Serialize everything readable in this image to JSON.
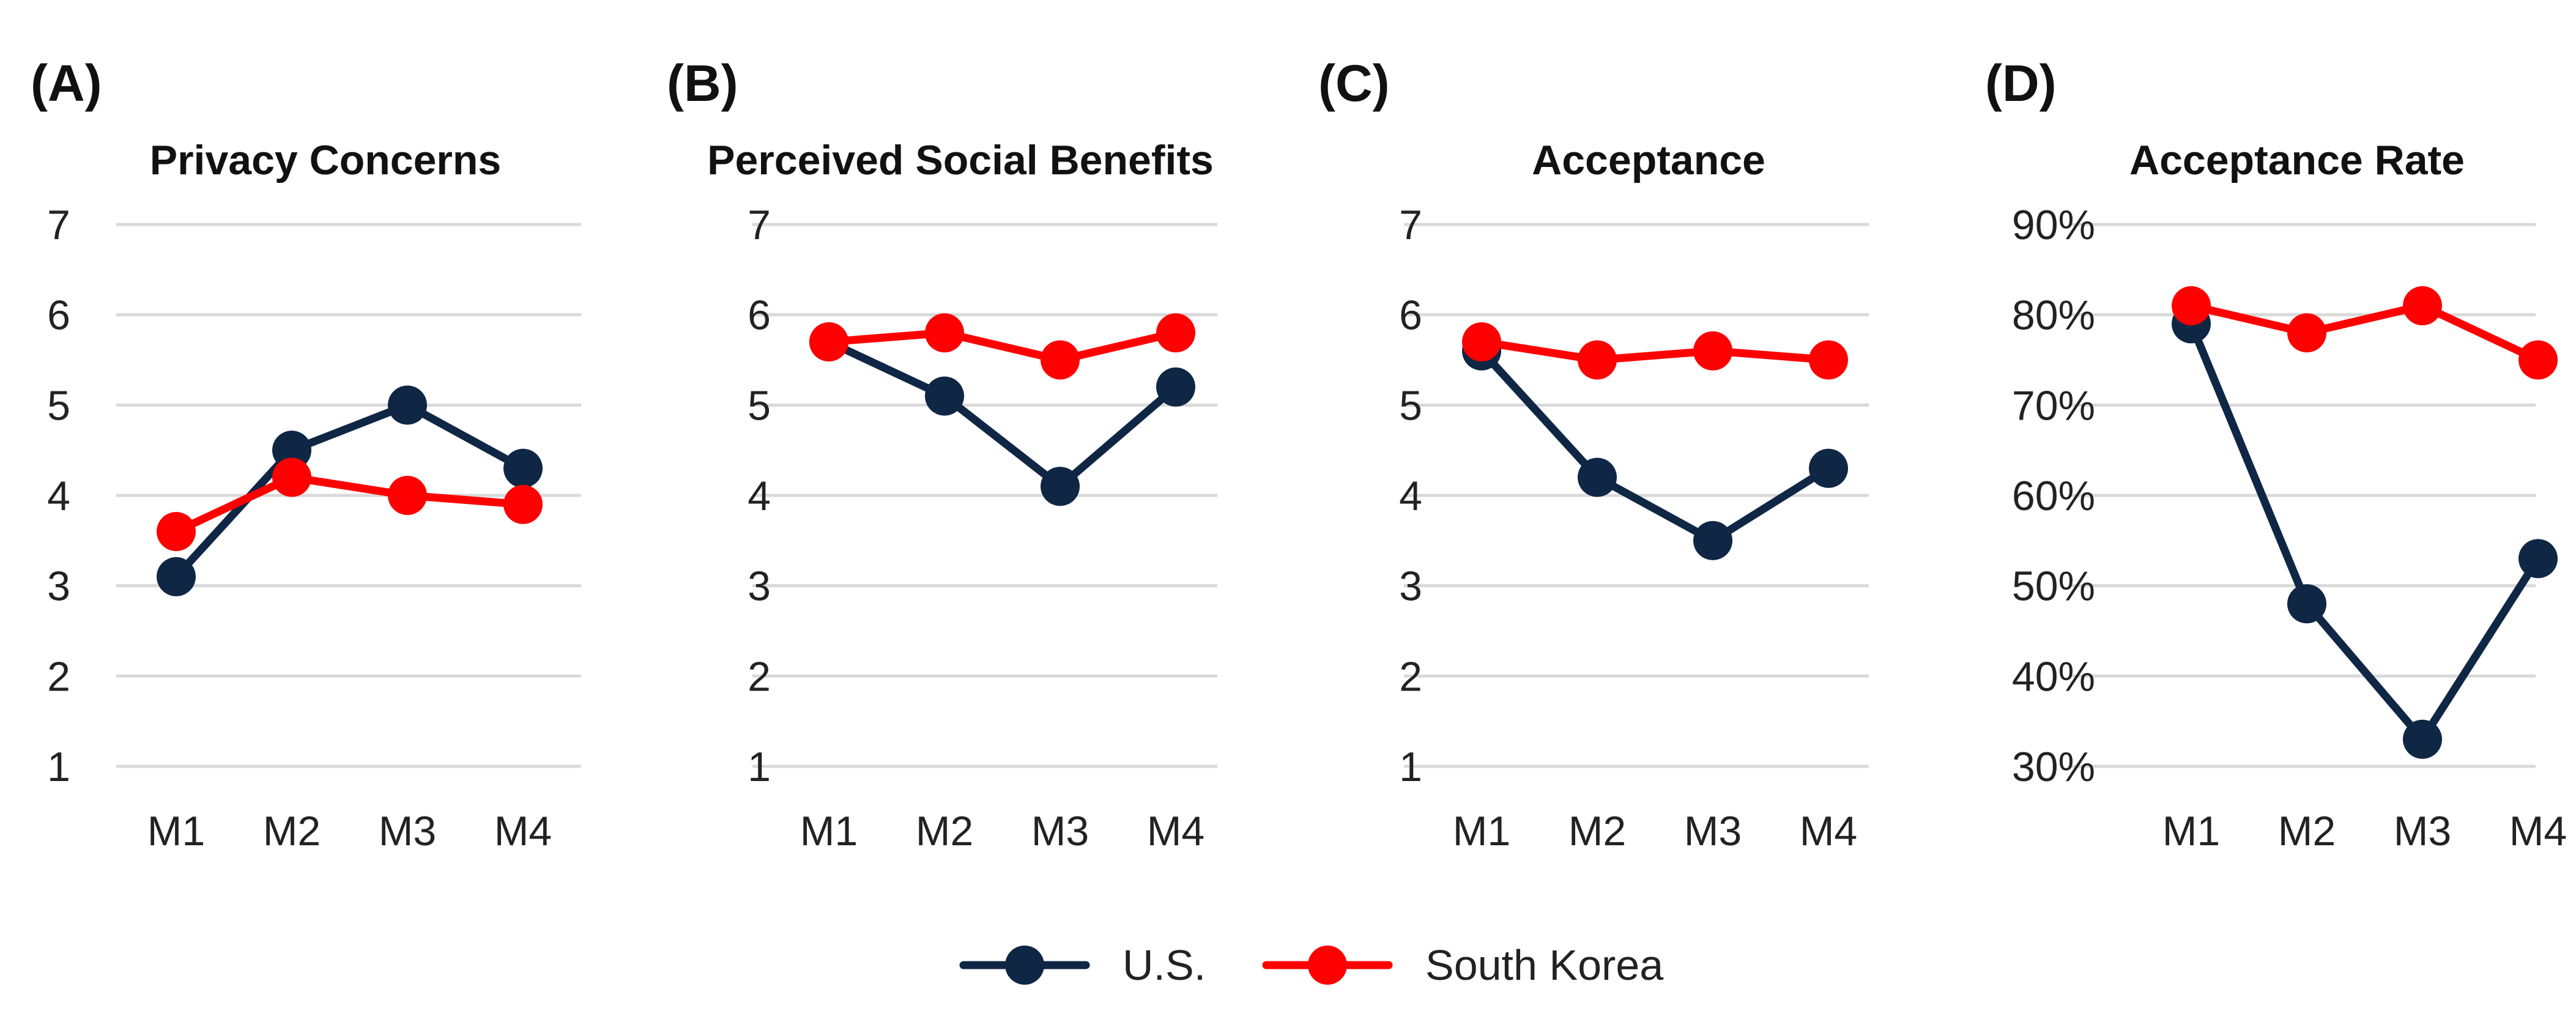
{
  "colors": {
    "us": "#0f2645",
    "korea": "#ff0000"
  },
  "legend": {
    "us_label": "U.S.",
    "korea_label": "South Korea"
  },
  "chart_data": [
    {
      "type": "line",
      "panel": "(A)",
      "title": "Privacy Concerns",
      "categories": [
        "M1",
        "M2",
        "M3",
        "M4"
      ],
      "y_ticks": [
        "1",
        "2",
        "3",
        "4",
        "5",
        "6",
        "7"
      ],
      "ylim": [
        1,
        7
      ],
      "series": [
        {
          "name": "U.S.",
          "color_key": "us",
          "values": [
            3.1,
            4.5,
            5.0,
            4.3
          ]
        },
        {
          "name": "South Korea",
          "color_key": "korea",
          "values": [
            3.6,
            4.2,
            4.0,
            3.9
          ]
        }
      ]
    },
    {
      "type": "line",
      "panel": "(B)",
      "title": "Perceived Social Benefits",
      "categories": [
        "M1",
        "M2",
        "M3",
        "M4"
      ],
      "y_ticks": [
        "1",
        "2",
        "3",
        "4",
        "5",
        "6",
        "7"
      ],
      "ylim": [
        1,
        7
      ],
      "series": [
        {
          "name": "U.S.",
          "color_key": "us",
          "values": [
            5.7,
            5.1,
            4.1,
            5.2
          ]
        },
        {
          "name": "South Korea",
          "color_key": "korea",
          "values": [
            5.7,
            5.8,
            5.5,
            5.8
          ]
        }
      ]
    },
    {
      "type": "line",
      "panel": "(C)",
      "title": "Acceptance",
      "categories": [
        "M1",
        "M2",
        "M3",
        "M4"
      ],
      "y_ticks": [
        "1",
        "2",
        "3",
        "4",
        "5",
        "6",
        "7"
      ],
      "ylim": [
        1,
        7
      ],
      "series": [
        {
          "name": "U.S.",
          "color_key": "us",
          "values": [
            5.6,
            4.2,
            3.5,
            4.3
          ]
        },
        {
          "name": "South Korea",
          "color_key": "korea",
          "values": [
            5.7,
            5.5,
            5.6,
            5.5
          ]
        }
      ]
    },
    {
      "type": "line",
      "panel": "(D)",
      "title": "Acceptance Rate",
      "categories": [
        "M1",
        "M2",
        "M3",
        "M4"
      ],
      "y_ticks": [
        "30%",
        "40%",
        "50%",
        "60%",
        "70%",
        "80%",
        "90%"
      ],
      "ylim": [
        30,
        90
      ],
      "series": [
        {
          "name": "U.S.",
          "color_key": "us",
          "values": [
            79,
            48,
            33,
            53
          ]
        },
        {
          "name": "South Korea",
          "color_key": "korea",
          "values": [
            81,
            78,
            81,
            75
          ]
        }
      ]
    }
  ]
}
